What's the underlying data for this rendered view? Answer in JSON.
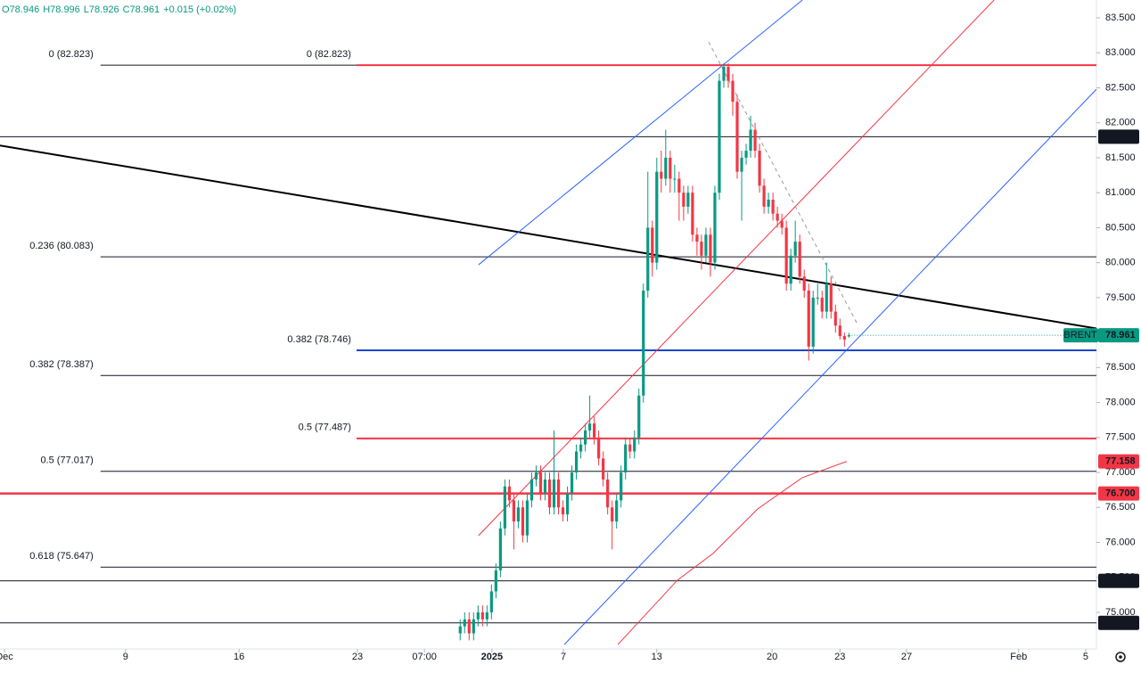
{
  "chart_data": {
    "type": "candlestick",
    "ohlc_legend": [
      "O78.946",
      "H78.996",
      "L78.926",
      "C78.961",
      "+0.015 (+0.02%)"
    ],
    "up_color": "#089981",
    "down_color": "#f23645",
    "xlim": [
      0,
      245.4
    ],
    "ylim": [
      74.477,
      83.755
    ],
    "xticks": [
      {
        "value": 1,
        "label": "Dec"
      },
      {
        "value": 28.1,
        "label": "9"
      },
      {
        "value": 53.5,
        "label": "16"
      },
      {
        "value": 80,
        "label": "23"
      },
      {
        "value": 95,
        "label": "07:00"
      },
      {
        "value": 110.1,
        "label": "2025"
      },
      {
        "value": 126.1,
        "label": "7"
      },
      {
        "value": 147,
        "label": "13"
      },
      {
        "value": 172.8,
        "label": "20"
      },
      {
        "value": 188,
        "label": "23"
      },
      {
        "value": 202.9,
        "label": "27"
      },
      {
        "value": 228,
        "label": "Feb"
      },
      {
        "value": 243,
        "label": "5"
      }
    ],
    "yticks": [
      {
        "value": 75,
        "label": "75.000"
      },
      {
        "value": 75.5,
        "label": "75.500"
      },
      {
        "value": 76,
        "label": "76.000"
      },
      {
        "value": 76.5,
        "label": "76.500"
      },
      {
        "value": 77,
        "label": "77.000"
      },
      {
        "value": 77.5,
        "label": "77.500"
      },
      {
        "value": 78,
        "label": "78.000"
      },
      {
        "value": 78.5,
        "label": "78.500"
      },
      {
        "value": 79,
        "label": "79.000"
      },
      {
        "value": 79.5,
        "label": "79.500"
      },
      {
        "value": 80,
        "label": "80.000"
      },
      {
        "value": 80.5,
        "label": "80.500"
      },
      {
        "value": 81,
        "label": "81.000"
      },
      {
        "value": 81.5,
        "label": "81.500"
      },
      {
        "value": 82,
        "label": "82.000"
      },
      {
        "value": 82.5,
        "label": "82.500"
      },
      {
        "value": 83,
        "label": "83.000"
      },
      {
        "value": 83.5,
        "label": "83.500"
      }
    ],
    "x": [
      103,
      104,
      105,
      106,
      107,
      108,
      109,
      110,
      111,
      112,
      113,
      114,
      115,
      116,
      117,
      118,
      119,
      120,
      121,
      122,
      123,
      124,
      125,
      126,
      127,
      128,
      129,
      130,
      131,
      132,
      133,
      134,
      135,
      136,
      137,
      138,
      139,
      140,
      141,
      142,
      143,
      144,
      145,
      146,
      147,
      148,
      149,
      150,
      151,
      152,
      153,
      154,
      155,
      156,
      157,
      158,
      159,
      160,
      161,
      162,
      163,
      164,
      165,
      166,
      167,
      168,
      169,
      170,
      171,
      172,
      173,
      174,
      175,
      176,
      177,
      178,
      179,
      180,
      181,
      182,
      183,
      184,
      185,
      186,
      187,
      188,
      189,
      190
    ],
    "open": [
      74.7,
      74.8,
      74.9,
      74.7,
      74.9,
      75.0,
      74.9,
      75.0,
      75.3,
      75.6,
      76.2,
      76.8,
      76.6,
      76.3,
      76.5,
      76.1,
      76.6,
      76.9,
      77.0,
      76.7,
      76.9,
      76.5,
      76.9,
      76.5,
      76.4,
      76.7,
      77.0,
      77.3,
      77.4,
      77.6,
      77.7,
      77.5,
      77.2,
      76.9,
      76.5,
      76.3,
      76.6,
      77.0,
      77.4,
      77.3,
      77.5,
      78.1,
      79.6,
      80.5,
      80.0,
      81.3,
      81.2,
      81.5,
      81.2,
      81.2,
      81.0,
      80.8,
      81.0,
      80.4,
      80.3,
      80.1,
      80.4,
      80.0,
      81.0,
      82.6,
      82.8,
      82.6,
      82.3,
      81.3,
      81.5,
      81.6,
      81.9,
      81.6,
      81.1,
      80.8,
      80.9,
      80.7,
      80.6,
      80.5,
      79.7,
      80.1,
      80.3,
      79.8,
      79.6,
      78.8,
      79.5,
      79.5,
      79.3,
      79.7,
      79.3,
      79.1,
      78.95,
      78.946
    ],
    "high": [
      74.9,
      75.0,
      75.0,
      75.0,
      75.1,
      75.1,
      75.1,
      75.4,
      75.7,
      76.3,
      76.9,
      76.9,
      76.7,
      76.6,
      76.6,
      76.7,
      77.0,
      77.1,
      77.1,
      77.0,
      77.0,
      77.6,
      77.0,
      76.6,
      76.8,
      77.1,
      77.4,
      77.5,
      77.7,
      78.1,
      77.8,
      77.6,
      77.3,
      77.0,
      76.6,
      76.7,
      77.1,
      77.5,
      77.5,
      77.6,
      78.2,
      79.7,
      81.3,
      80.6,
      81.5,
      81.6,
      81.9,
      81.6,
      81.4,
      81.3,
      81.1,
      81.1,
      81.1,
      80.5,
      80.4,
      80.5,
      80.5,
      81.1,
      82.7,
      82.85,
      82.85,
      82.7,
      82.4,
      81.6,
      81.7,
      82.1,
      82.0,
      81.7,
      81.2,
      81.0,
      81.0,
      80.8,
      80.7,
      80.6,
      80.2,
      80.6,
      80.4,
      79.9,
      79.7,
      79.6,
      79.7,
      79.6,
      80.0,
      79.8,
      79.4,
      79.2,
      79.0,
      78.996
    ],
    "low": [
      74.6,
      74.7,
      74.6,
      74.6,
      74.8,
      74.8,
      74.8,
      74.9,
      75.2,
      75.5,
      76.1,
      76.5,
      75.9,
      76.2,
      76.0,
      76.0,
      76.5,
      76.8,
      76.6,
      76.6,
      76.4,
      76.4,
      76.4,
      76.3,
      76.3,
      76.6,
      76.9,
      77.2,
      77.3,
      77.5,
      77.4,
      77.1,
      76.8,
      76.4,
      75.9,
      76.2,
      76.5,
      76.9,
      77.2,
      77.2,
      77.4,
      78.0,
      79.5,
      79.8,
      79.9,
      81.0,
      81.1,
      81.0,
      81.0,
      80.6,
      80.6,
      80.7,
      80.3,
      80.1,
      79.9,
      80.0,
      79.8,
      79.9,
      80.9,
      82.5,
      82.5,
      82.1,
      81.2,
      80.6,
      81.4,
      81.5,
      81.5,
      81.0,
      80.7,
      80.7,
      80.6,
      80.5,
      80.4,
      79.6,
      79.6,
      80.0,
      79.7,
      79.5,
      78.6,
      78.7,
      79.4,
      79.2,
      79.2,
      79.2,
      79.0,
      78.9,
      78.8,
      78.926
    ],
    "close": [
      74.8,
      74.9,
      74.7,
      74.9,
      75.0,
      74.9,
      75.0,
      75.3,
      75.6,
      76.2,
      76.8,
      76.6,
      76.3,
      76.5,
      76.1,
      76.6,
      76.9,
      77.0,
      76.7,
      76.9,
      76.5,
      76.9,
      76.5,
      76.4,
      76.7,
      77.0,
      77.3,
      77.4,
      77.6,
      77.7,
      77.5,
      77.2,
      76.9,
      76.5,
      76.3,
      76.6,
      77.0,
      77.4,
      77.3,
      77.5,
      78.1,
      79.6,
      80.5,
      80.0,
      81.3,
      81.2,
      81.5,
      81.2,
      81.2,
      81.0,
      80.8,
      81.0,
      80.4,
      80.3,
      80.1,
      80.4,
      80.0,
      81.0,
      82.6,
      82.8,
      82.6,
      82.3,
      81.3,
      81.5,
      81.6,
      81.9,
      81.6,
      81.1,
      80.8,
      80.9,
      80.7,
      80.6,
      80.5,
      79.7,
      80.1,
      80.3,
      79.8,
      79.6,
      78.8,
      79.5,
      79.5,
      79.3,
      79.7,
      79.3,
      79.1,
      78.95,
      78.9,
      78.961
    ],
    "fib_left": {
      "x_start": 22.5,
      "color": "#131722",
      "levels": [
        {
          "value": 82.823,
          "label": "0 (82.823)"
        },
        {
          "value": 80.083,
          "label": "0.236 (80.083)"
        },
        {
          "value": 78.387,
          "label": "0.382 (78.387)"
        },
        {
          "value": 77.017,
          "label": "0.5 (77.017)"
        },
        {
          "value": 75.647,
          "label": "0.618 (75.647)"
        }
      ]
    },
    "fib_right": {
      "x_start": 79.8,
      "levels": [
        {
          "value": 82.823,
          "label": "0 (82.823)",
          "color": "#f23645"
        },
        {
          "value": 78.746,
          "label": "0.382 (78.746)",
          "color": "#1848cc"
        },
        {
          "value": 77.487,
          "label": "0.5 (77.487)",
          "color": "#f23645"
        }
      ]
    },
    "horizontal_lines": [
      {
        "value": 81.8,
        "label": "81.800",
        "color": "#131722",
        "width": 1
      },
      {
        "value": 76.7,
        "label": "76.700",
        "color": "#f23645",
        "width": 2.5
      },
      {
        "value": 75.45,
        "label": "75.450",
        "color": "#131722",
        "width": 1
      },
      {
        "value": 74.85,
        "label": "74.850",
        "color": "#131722",
        "width": 1
      }
    ],
    "trend_lines": [
      {
        "x": [
          0,
          245.4
        ],
        "y": [
          81.675,
          79.058
        ],
        "color": "#000000",
        "width": 2
      },
      {
        "x": [
          107.1,
          179.6
        ],
        "y": [
          79.969,
          83.755
        ],
        "color": "#2962ff",
        "width": 1
      },
      {
        "x": [
          107.1,
          222.5
        ],
        "y": [
          76.097,
          83.755
        ],
        "color": "#f23645",
        "width": 1
      },
      {
        "x": [
          126.3,
          245.4
        ],
        "y": [
          74.54,
          82.479
        ],
        "color": "#2962ff",
        "width": 1
      },
      {
        "x": [
          158.6,
          192.1
        ],
        "y": [
          83.155,
          79.097
        ],
        "color": "#9598a1",
        "width": 1,
        "dashed": true
      }
    ],
    "moving_average": {
      "x": [
        138.3,
        151.6,
        159.6,
        169.6,
        179.6,
        189.5
      ],
      "y": [
        74.54,
        75.459,
        75.842,
        76.48,
        76.927,
        77.158
      ],
      "color": "#f23645",
      "label": "77.158"
    },
    "last_price": {
      "symbol": "BRENT",
      "value": 78.961,
      "color": "#089981"
    }
  }
}
